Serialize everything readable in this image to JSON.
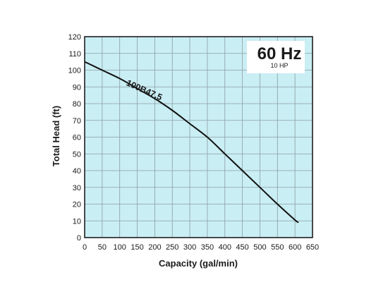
{
  "chart_data": {
    "type": "line",
    "title": "",
    "xlabel": "Capacity (gal/min)",
    "ylabel": "Total Head (ft)",
    "xlim": [
      0,
      650
    ],
    "ylim": [
      0,
      120
    ],
    "x_ticks": [
      0,
      50,
      100,
      150,
      200,
      250,
      300,
      350,
      400,
      450,
      500,
      550,
      600,
      650
    ],
    "y_ticks": [
      0,
      10,
      20,
      30,
      40,
      50,
      60,
      70,
      80,
      90,
      100,
      110,
      120
    ],
    "grid": true,
    "series": [
      {
        "name": "100B47.5",
        "x": [
          0,
          50,
          100,
          150,
          200,
          250,
          300,
          350,
          400,
          450,
          500,
          550,
          600,
          610
        ],
        "y": [
          105,
          100,
          95,
          89,
          83,
          76,
          68,
          60,
          50,
          40,
          30,
          20,
          10.5,
          9
        ]
      }
    ],
    "badge": {
      "frequency": "60 Hz",
      "power": "10 HP"
    },
    "colors": {
      "plot_background": "#c9eef4",
      "grid": "#8a9ea2",
      "line": "#111111",
      "frame": "#111111"
    }
  }
}
